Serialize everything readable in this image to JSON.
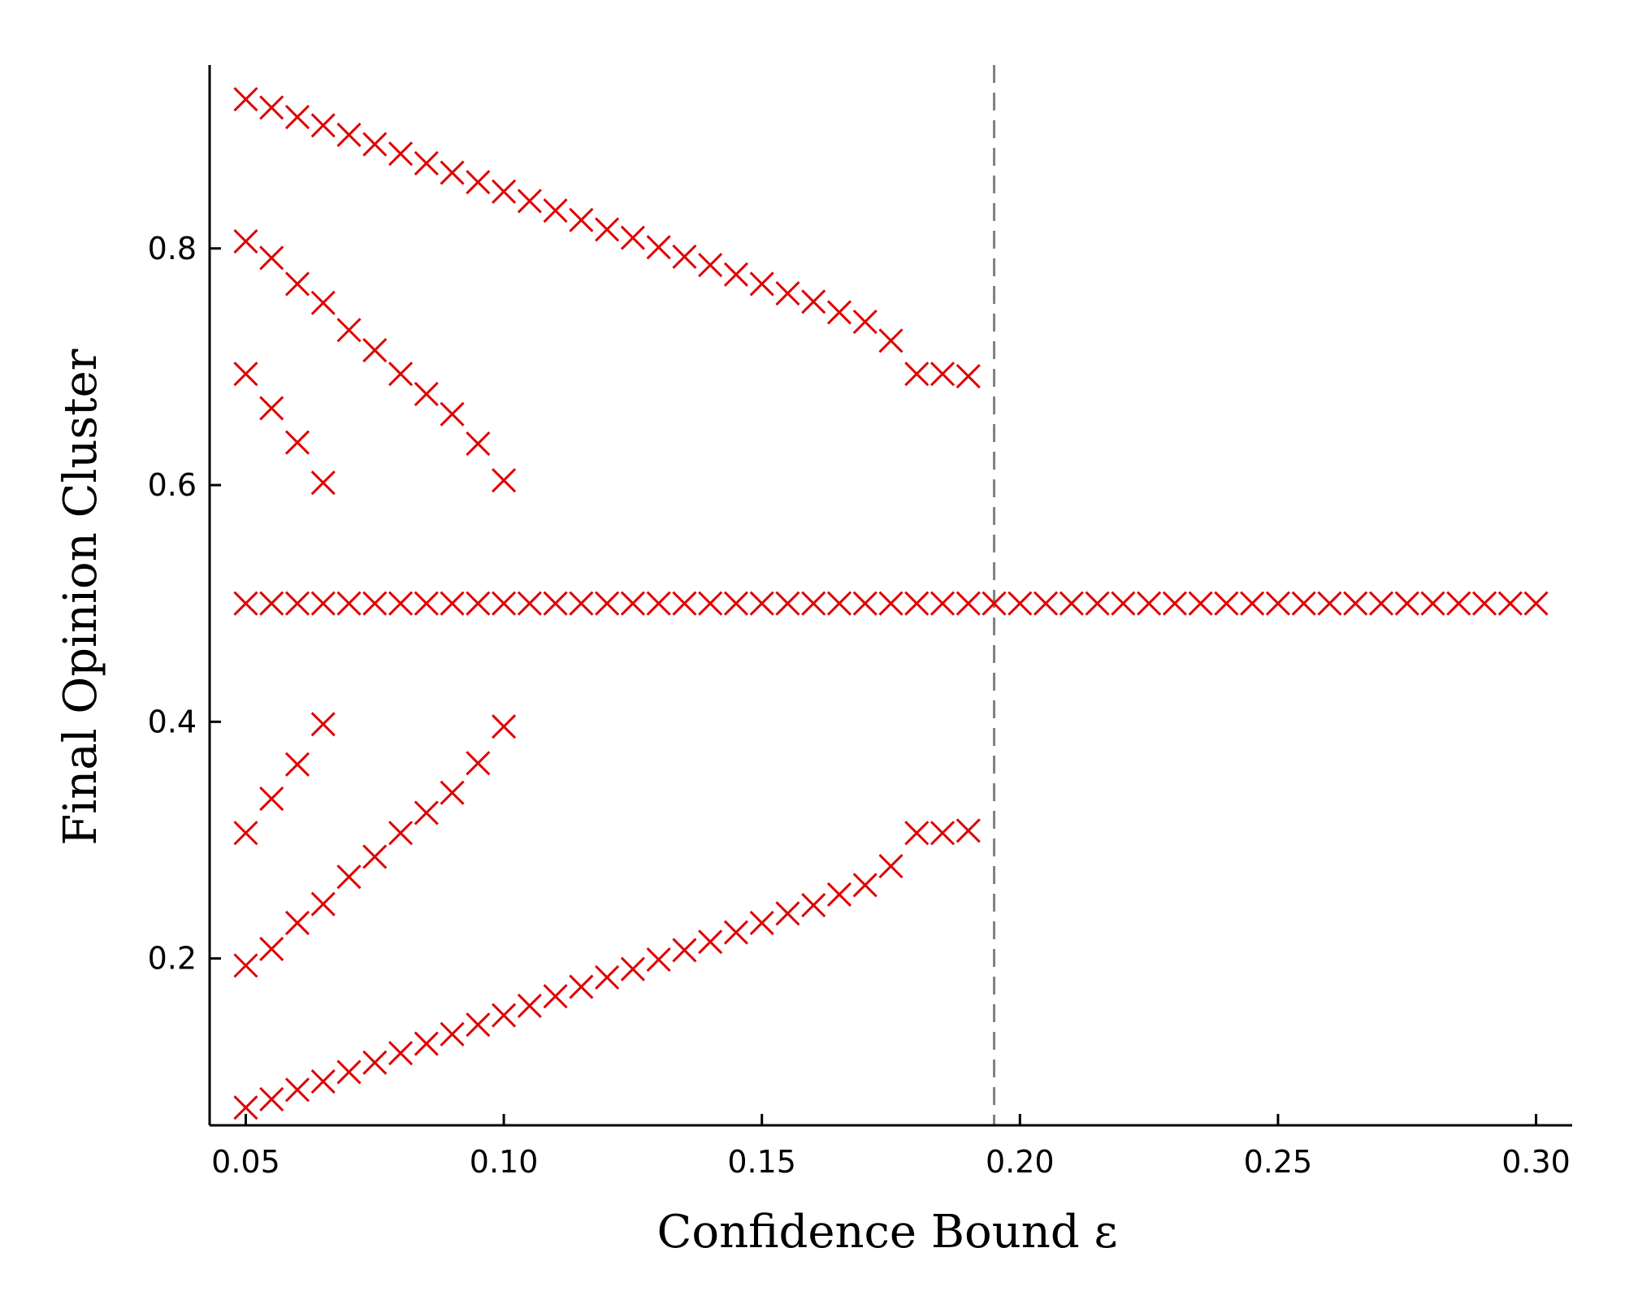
{
  "chart_data": {
    "type": "scatter",
    "xlabel": "Confidence Bound ε",
    "ylabel": "Final Opinion Cluster",
    "xlim": [
      0.043,
      0.307
    ],
    "ylim": [
      0.059,
      0.955
    ],
    "xticks": [
      0.05,
      0.1,
      0.15,
      0.2,
      0.25,
      0.3
    ],
    "xtick_labels": [
      "0.05",
      "0.10",
      "0.15",
      "0.20",
      "0.25",
      "0.30"
    ],
    "yticks": [
      0.2,
      0.4,
      0.6,
      0.8
    ],
    "ytick_labels": [
      "0.2",
      "0.4",
      "0.6",
      "0.8"
    ],
    "grid": false,
    "marker": "x",
    "marker_color": "#e00000",
    "threshold_line": {
      "x": 0.195,
      "style": "dashed",
      "color": "#808080"
    },
    "series": [
      {
        "x": [
          0.05,
          0.055,
          0.06,
          0.065,
          0.07,
          0.075,
          0.08,
          0.085,
          0.09,
          0.095,
          0.1,
          0.105,
          0.11,
          0.115,
          0.12,
          0.125,
          0.13,
          0.135,
          0.14,
          0.145,
          0.15,
          0.155,
          0.16,
          0.165,
          0.17,
          0.175,
          0.18,
          0.185,
          0.19
        ],
        "y": [
          0.926,
          0.919,
          0.911,
          0.904,
          0.896,
          0.888,
          0.88,
          0.872,
          0.864,
          0.856,
          0.848,
          0.84,
          0.832,
          0.824,
          0.816,
          0.809,
          0.801,
          0.793,
          0.786,
          0.778,
          0.77,
          0.762,
          0.755,
          0.746,
          0.738,
          0.722,
          0.694,
          0.694,
          0.692
        ]
      },
      {
        "x": [
          0.05,
          0.055,
          0.06,
          0.065,
          0.07,
          0.075,
          0.08,
          0.085,
          0.09,
          0.095,
          0.1
        ],
        "y": [
          0.806,
          0.792,
          0.77,
          0.754,
          0.731,
          0.714,
          0.694,
          0.677,
          0.66,
          0.635,
          0.604
        ]
      },
      {
        "x": [
          0.05,
          0.055,
          0.06,
          0.065
        ],
        "y": [
          0.694,
          0.665,
          0.636,
          0.602
        ]
      },
      {
        "x": [
          0.05,
          0.055,
          0.06,
          0.065,
          0.07,
          0.075,
          0.08,
          0.085,
          0.09,
          0.095,
          0.1,
          0.105,
          0.11,
          0.115,
          0.12,
          0.125,
          0.13,
          0.135,
          0.14,
          0.145,
          0.15,
          0.155,
          0.16,
          0.165,
          0.17,
          0.175,
          0.18,
          0.185,
          0.19,
          0.195,
          0.2,
          0.205,
          0.21,
          0.215,
          0.22,
          0.225,
          0.23,
          0.235,
          0.24,
          0.245,
          0.25,
          0.255,
          0.26,
          0.265,
          0.27,
          0.275,
          0.28,
          0.285,
          0.29,
          0.295,
          0.3
        ],
        "y": [
          0.5,
          0.5,
          0.5,
          0.5,
          0.5,
          0.5,
          0.5,
          0.5,
          0.5,
          0.5,
          0.5,
          0.5,
          0.5,
          0.5,
          0.5,
          0.5,
          0.5,
          0.5,
          0.5,
          0.5,
          0.5,
          0.5,
          0.5,
          0.5,
          0.5,
          0.5,
          0.5,
          0.5,
          0.5,
          0.5,
          0.5,
          0.5,
          0.5,
          0.5,
          0.5,
          0.5,
          0.5,
          0.5,
          0.5,
          0.5,
          0.5,
          0.5,
          0.5,
          0.5,
          0.5,
          0.5,
          0.5,
          0.5,
          0.5,
          0.5,
          0.5
        ]
      },
      {
        "x": [
          0.05,
          0.055,
          0.06,
          0.065
        ],
        "y": [
          0.306,
          0.335,
          0.364,
          0.398
        ]
      },
      {
        "x": [
          0.05,
          0.055,
          0.06,
          0.065,
          0.07,
          0.075,
          0.08,
          0.085,
          0.09,
          0.095,
          0.1
        ],
        "y": [
          0.194,
          0.208,
          0.23,
          0.246,
          0.269,
          0.286,
          0.306,
          0.323,
          0.34,
          0.365,
          0.396
        ]
      },
      {
        "x": [
          0.05,
          0.055,
          0.06,
          0.065,
          0.07,
          0.075,
          0.08,
          0.085,
          0.09,
          0.095,
          0.1,
          0.105,
          0.11,
          0.115,
          0.12,
          0.125,
          0.13,
          0.135,
          0.14,
          0.145,
          0.15,
          0.155,
          0.16,
          0.165,
          0.17,
          0.175,
          0.18,
          0.185,
          0.19
        ],
        "y": [
          0.074,
          0.081,
          0.089,
          0.096,
          0.104,
          0.112,
          0.12,
          0.128,
          0.136,
          0.144,
          0.152,
          0.16,
          0.168,
          0.176,
          0.184,
          0.191,
          0.199,
          0.207,
          0.214,
          0.222,
          0.23,
          0.238,
          0.245,
          0.254,
          0.262,
          0.278,
          0.306,
          0.306,
          0.308
        ]
      }
    ]
  }
}
